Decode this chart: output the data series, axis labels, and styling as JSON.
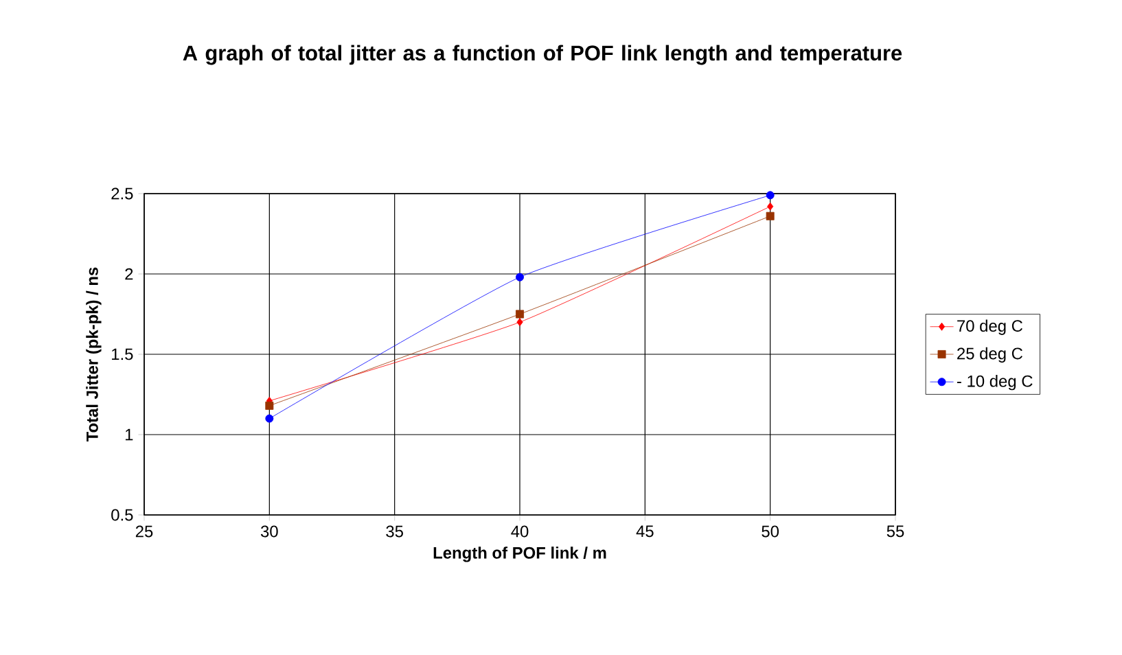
{
  "chart_data": {
    "type": "line",
    "title": "A graph of total jitter as a function of POF link length and temperature",
    "xlabel": "Length of POF link / m",
    "ylabel": "Total Jitter (pk-pk) / ns",
    "x": [
      30,
      40,
      50
    ],
    "series": [
      {
        "name": "70 deg C",
        "color": "#ff0000",
        "marker": "diamond",
        "values": [
          1.21,
          1.7,
          2.42
        ]
      },
      {
        "name": "25 deg C",
        "color": "#993300",
        "marker": "square",
        "values": [
          1.18,
          1.75,
          2.36
        ]
      },
      {
        "name": "- 10 deg C",
        "color": "#0000ff",
        "marker": "circle",
        "values": [
          1.1,
          1.98,
          2.49
        ]
      }
    ],
    "xlim": [
      25,
      55
    ],
    "xticks": [
      25,
      30,
      35,
      40,
      45,
      50,
      55
    ],
    "ylim": [
      0.5,
      2.5
    ],
    "yticks": [
      0.5,
      1,
      1.5,
      2,
      2.5
    ],
    "grid": true,
    "legend": "right",
    "line_style": "solid"
  }
}
